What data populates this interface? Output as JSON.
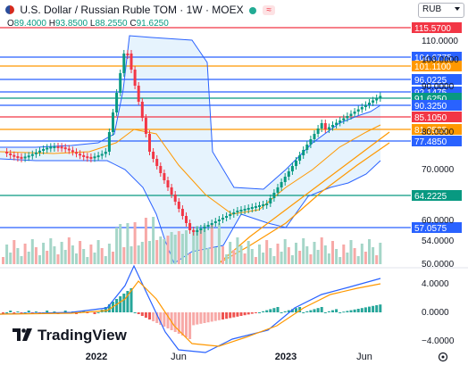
{
  "header": {
    "flag_icon": "us-ru-flag-icon",
    "title": "U.S. Dollar / Russian Ruble TOM · 1W · MOEX",
    "badge": "≈",
    "ohlc": {
      "o": "89.4000",
      "h": "93.8500",
      "l": "88.2550",
      "c": "91.6250"
    },
    "ohlc_labels": {
      "o": "O",
      "h": "H",
      "l": "L",
      "c": "C"
    },
    "currency": "RUB"
  },
  "logo": {
    "text": "TradingView"
  },
  "price_axis": {
    "ticks": [
      "110.0000",
      "100.0000",
      "90.0000",
      "80.0000",
      "70.0000",
      "60.0000",
      "54.0000",
      "50.0000"
    ],
    "levels": [
      {
        "label": "115.5700",
        "color": "#f23645"
      },
      {
        "label": "104.6775",
        "color": "#2962ff"
      },
      {
        "label": "101.1100",
        "color": "#ff9800"
      },
      {
        "label": "96.0225",
        "color": "#2962ff"
      },
      {
        "label": "92.1475",
        "color": "#2962ff"
      },
      {
        "label": "91.6250",
        "color": "#089981"
      },
      {
        "label": "90.3250",
        "color": "#2962ff"
      },
      {
        "label": "85.1050",
        "color": "#f23645"
      },
      {
        "label": "81.3525",
        "color": "#ff9800"
      },
      {
        "label": "77.4850",
        "color": "#2962ff"
      },
      {
        "label": "64.2225",
        "color": "#089981"
      },
      {
        "label": "57.0575",
        "color": "#2962ff"
      }
    ]
  },
  "osc_axis": {
    "ticks": [
      "4.0000",
      "0.0000",
      "−4.0000"
    ]
  },
  "time_axis": {
    "labels": [
      "2022",
      "Jun",
      "2023",
      "Jun"
    ]
  },
  "icons": {
    "settings": "settings-icon"
  }
}
